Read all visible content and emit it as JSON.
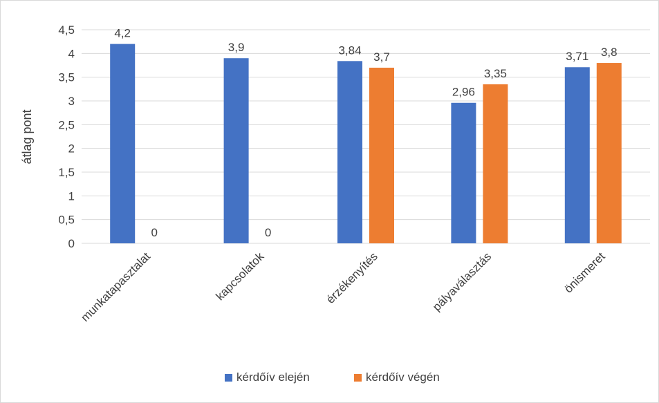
{
  "chart_data": {
    "type": "bar",
    "categories": [
      "munkatapasztalat",
      "kapcsolatok",
      "érzékenyítés",
      "pályaválasztás",
      "önismeret"
    ],
    "series": [
      {
        "name": "kérdőív elején",
        "values": [
          4.2,
          3.9,
          3.84,
          2.96,
          3.71
        ],
        "labels": [
          "4,2",
          "3,9",
          "3,84",
          "2,96",
          "3,71"
        ],
        "color": "#4472C4"
      },
      {
        "name": "kérdőív végén",
        "values": [
          0,
          0,
          3.7,
          3.35,
          3.8
        ],
        "labels": [
          "0",
          "0",
          "3,7",
          "3,35",
          "3,8"
        ],
        "color": "#ED7D31"
      }
    ],
    "ylabel": "átlag pont",
    "xlabel": "",
    "ylim": [
      0,
      4.5
    ],
    "yticks": [
      0,
      0.5,
      1,
      1.5,
      2,
      2.5,
      3,
      3.5,
      4,
      4.5
    ],
    "ytick_labels": [
      "0",
      "0,5",
      "1",
      "1,5",
      "2",
      "2,5",
      "3",
      "3,5",
      "4",
      "4,5"
    ],
    "grid": true,
    "legend_position": "bottom",
    "gridline_color": "#d9d9d9"
  }
}
